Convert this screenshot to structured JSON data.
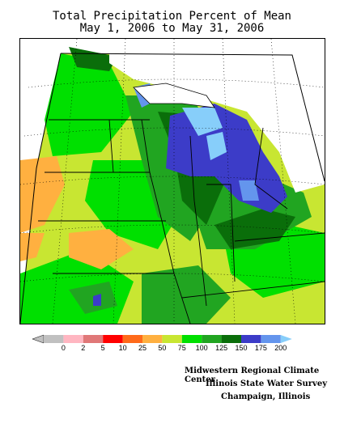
{
  "title": {
    "line1": "Total Precipitation Percent of Mean",
    "line2": "May 1, 2006 to May 31, 2006"
  },
  "legend": {
    "bins": [
      {
        "label": "0",
        "color": "#c0c0c0"
      },
      {
        "label": "2",
        "color": "#ffb6c1"
      },
      {
        "label": "5",
        "color": "#e07878"
      },
      {
        "label": "10",
        "color": "#ff0000"
      },
      {
        "label": "25",
        "color": "#ff6a1a"
      },
      {
        "label": "50",
        "color": "#ffb040"
      },
      {
        "label": "75",
        "color": "#c8e632"
      },
      {
        "label": "100",
        "color": "#00e000"
      },
      {
        "label": "125",
        "color": "#21a521"
      },
      {
        "label": "150",
        "color": "#0a6e0a"
      },
      {
        "label": "175",
        "color": "#3c3cc8"
      },
      {
        "label": "200",
        "color": "#6495ed"
      }
    ],
    "overflow_color": "#87cefa"
  },
  "credits": {
    "line1": "Midwestern Regional Climate Center",
    "line2": "Illinois State Water Survey",
    "line3": "Champaign, Illinois"
  },
  "colors": {
    "lake": "#ffffff",
    "outline": "#000000",
    "grid": "#000000"
  }
}
